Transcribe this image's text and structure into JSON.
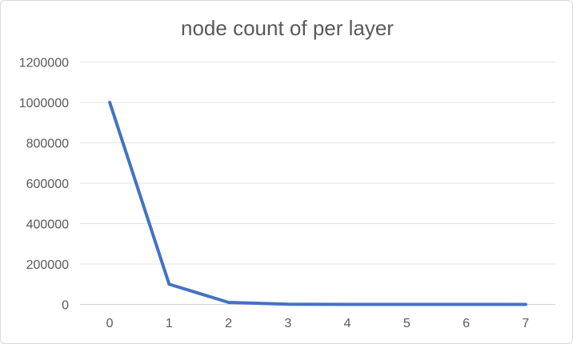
{
  "chart_data": {
    "type": "line",
    "title": "node count of per layer",
    "xlabel": "",
    "ylabel": "",
    "categories": [
      "0",
      "1",
      "2",
      "3",
      "4",
      "5",
      "6",
      "7"
    ],
    "series": [
      {
        "values": [
          1000000,
          100000,
          10000,
          1000,
          100,
          10,
          1,
          0
        ],
        "color": "#4472c4"
      }
    ],
    "ylim": [
      0,
      1200000
    ],
    "yticks": [
      "0",
      "200000",
      "400000",
      "600000",
      "800000",
      "1000000",
      "1200000"
    ],
    "grid": true,
    "legend": "none"
  }
}
